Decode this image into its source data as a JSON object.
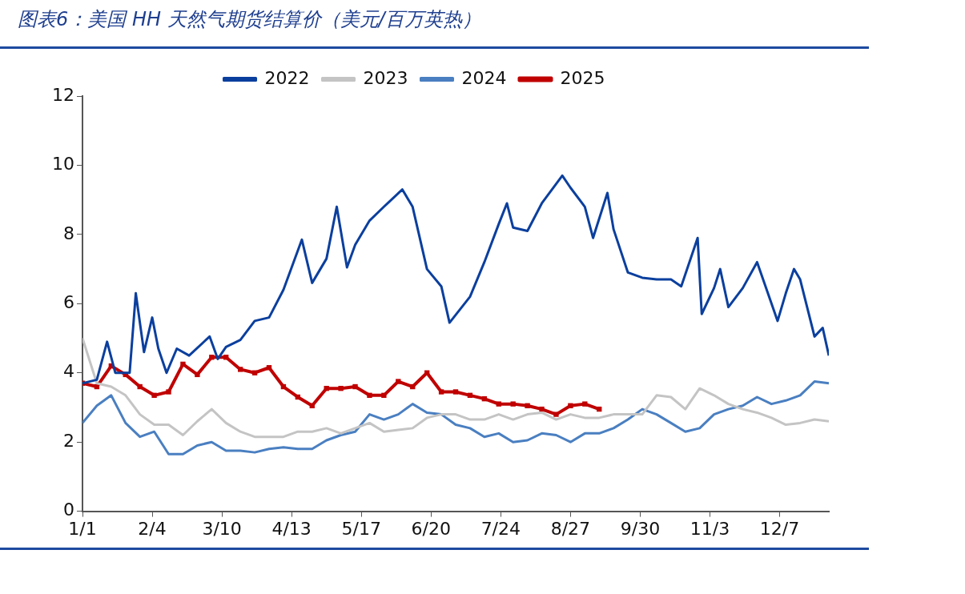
{
  "chart_data": {
    "type": "line",
    "title": "图表6：美国 HH 天然气期货结算价（美元/百万英热）",
    "x": [
      "--01-01",
      "--01-08",
      "--01-15",
      "--01-22",
      "--01-29",
      "--02-05",
      "--02-12",
      "--02-19",
      "--02-26",
      "--03-05",
      "--03-12",
      "--03-19",
      "--03-26",
      "--04-02",
      "--04-09",
      "--04-16",
      "--04-23",
      "--04-30",
      "--05-07",
      "--05-14",
      "--05-21",
      "--05-28",
      "--06-04",
      "--06-11",
      "--06-18",
      "--06-25",
      "--07-02",
      "--07-09",
      "--07-16",
      "--07-23",
      "--07-30",
      "--08-06",
      "--08-13",
      "--08-20",
      "--08-27",
      "--09-03",
      "--09-10",
      "--09-17",
      "--09-24",
      "--10-01",
      "--10-08",
      "--10-15",
      "--10-22",
      "--10-29",
      "--11-05",
      "--11-12",
      "--11-19",
      "--11-26",
      "--12-03",
      "--12-10",
      "--12-17",
      "--12-24",
      "--12-31"
    ],
    "xlim": [
      "--01-01",
      "--12-31"
    ],
    "xticks": [
      {
        "value": "--01-01",
        "label": "1/1"
      },
      {
        "value": "--02-04",
        "label": "2/4"
      },
      {
        "value": "--03-10",
        "label": "3/10"
      },
      {
        "value": "--04-13",
        "label": "4/13"
      },
      {
        "value": "--05-17",
        "label": "5/17"
      },
      {
        "value": "--06-20",
        "label": "6/20"
      },
      {
        "value": "--07-24",
        "label": "7/24"
      },
      {
        "value": "--08-27",
        "label": "8/27"
      },
      {
        "value": "--09-30",
        "label": "9/30"
      },
      {
        "value": "--11-03",
        "label": "11/3"
      },
      {
        "value": "--12-07",
        "label": "12/7"
      }
    ],
    "ylim": [
      0,
      12
    ],
    "yticks": [
      0,
      2,
      4,
      6,
      8,
      10,
      12
    ],
    "grid": false,
    "legend": "top",
    "series": [
      {
        "name": "2022",
        "color": "#0b3f9e",
        "marker": "none",
        "x": [
          "--01-01",
          "--01-08",
          "--01-13",
          "--01-17",
          "--01-24",
          "--01-27",
          "--01-31",
          "--02-04",
          "--02-07",
          "--02-11",
          "--02-16",
          "--02-22",
          "--03-04",
          "--03-08",
          "--03-12",
          "--03-19",
          "--03-26",
          "--04-02",
          "--04-09",
          "--04-18",
          "--04-23",
          "--04-30",
          "--05-05",
          "--05-10",
          "--05-14",
          "--05-21",
          "--05-28",
          "--06-06",
          "--06-11",
          "--06-18",
          "--06-25",
          "--06-29",
          "--07-09",
          "--07-16",
          "--07-23",
          "--07-27",
          "--07-30",
          "--08-06",
          "--08-13",
          "--08-23",
          "--08-27",
          "--09-03",
          "--09-07",
          "--09-14",
          "--09-17",
          "--09-24",
          "--10-01",
          "--10-08",
          "--10-15",
          "--10-20",
          "--10-28",
          "--10-30",
          "--11-05",
          "--11-08",
          "--11-12",
          "--11-19",
          "--11-26",
          "--12-06",
          "--12-10",
          "--12-14",
          "--12-17",
          "--12-24",
          "--12-28",
          "--12-31"
        ],
        "values": [
          3.7,
          3.8,
          4.9,
          4.0,
          4.0,
          6.3,
          4.6,
          5.6,
          4.7,
          4.0,
          4.7,
          4.5,
          5.05,
          4.4,
          4.75,
          4.95,
          5.5,
          5.6,
          6.4,
          7.85,
          6.6,
          7.3,
          8.8,
          7.05,
          7.7,
          8.4,
          8.8,
          9.3,
          8.8,
          7.0,
          6.5,
          5.45,
          6.2,
          7.2,
          8.3,
          8.9,
          8.2,
          8.1,
          8.9,
          9.7,
          9.35,
          8.8,
          7.9,
          9.2,
          8.15,
          6.9,
          6.75,
          6.7,
          6.7,
          6.5,
          7.9,
          5.7,
          6.45,
          7.0,
          5.9,
          6.45,
          7.2,
          5.5,
          6.3,
          7.0,
          6.7,
          5.05,
          5.3,
          4.5
        ]
      },
      {
        "name": "2023",
        "color": "#c4c4c4",
        "marker": "none",
        "values": [
          5.0,
          3.7,
          3.6,
          3.35,
          2.8,
          2.5,
          2.5,
          2.2,
          2.6,
          2.95,
          2.55,
          2.3,
          2.15,
          2.15,
          2.15,
          2.3,
          2.3,
          2.4,
          2.25,
          2.4,
          2.55,
          2.3,
          2.35,
          2.4,
          2.7,
          2.8,
          2.8,
          2.65,
          2.65,
          2.8,
          2.65,
          2.8,
          2.85,
          2.65,
          2.8,
          2.7,
          2.7,
          2.8,
          2.8,
          2.8,
          3.35,
          3.3,
          2.95,
          3.55,
          3.35,
          3.1,
          2.95,
          2.85,
          2.7,
          2.5,
          2.55,
          2.65,
          2.6
        ]
      },
      {
        "name": "2024",
        "color": "#4a7fc1",
        "marker": "none",
        "values": [
          2.55,
          3.05,
          3.35,
          2.55,
          2.15,
          2.3,
          1.65,
          1.65,
          1.9,
          2.0,
          1.75,
          1.75,
          1.7,
          1.8,
          1.85,
          1.8,
          1.8,
          2.05,
          2.2,
          2.3,
          2.8,
          2.65,
          2.8,
          3.1,
          2.85,
          2.8,
          2.5,
          2.4,
          2.15,
          2.25,
          2.0,
          2.05,
          2.25,
          2.2,
          2.0,
          2.25,
          2.25,
          2.4,
          2.65,
          2.95,
          2.8,
          2.55,
          2.3,
          2.4,
          2.8,
          2.95,
          3.05,
          3.3,
          3.1,
          3.2,
          3.35,
          3.75,
          3.7
        ]
      },
      {
        "name": "2025",
        "color": "#c00000",
        "marker": "square",
        "values": [
          3.7,
          3.6,
          4.2,
          3.95,
          3.6,
          3.35,
          3.45,
          4.25,
          3.95,
          4.45,
          4.45,
          4.1,
          4.0,
          4.15,
          3.6,
          3.3,
          3.05,
          3.55,
          3.55,
          3.6,
          3.35,
          3.35,
          3.75,
          3.6,
          4.0,
          3.45,
          3.45,
          3.35,
          3.25,
          3.1,
          3.1,
          3.05,
          2.95,
          2.8,
          3.05,
          3.1,
          2.95,
          null,
          null,
          null,
          null,
          null,
          null,
          null,
          null,
          null,
          null,
          null,
          null,
          null,
          null,
          null,
          null
        ]
      }
    ]
  }
}
